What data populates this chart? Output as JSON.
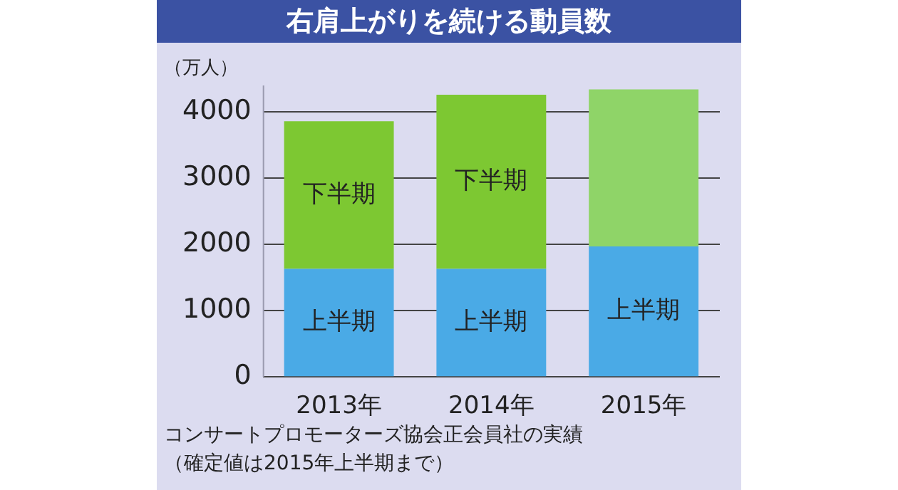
{
  "chart_data": {
    "type": "bar",
    "title": "右肩上がりを続ける動員数",
    "ylabel": "（万人）",
    "categories": [
      "2013年",
      "2014年",
      "2015年"
    ],
    "stacked": true,
    "series": [
      {
        "name": "上半期",
        "color": "#4aaae6",
        "values": [
          1630,
          1630,
          1970
        ]
      },
      {
        "name": "下半期",
        "color": "#7dc832",
        "colors": [
          "#7dc832",
          "#7dc832",
          "#8fd468"
        ],
        "values": [
          2230,
          2630,
          2370
        ]
      }
    ],
    "ylim": [
      0,
      4400
    ],
    "yticks": [
      0,
      1000,
      2000,
      3000,
      4000
    ],
    "grid": "y",
    "legend": false,
    "annotations": [
      "コンサートプロモーターズ協会正会員社の実績",
      "（確定値は2015年上半期まで）"
    ]
  }
}
